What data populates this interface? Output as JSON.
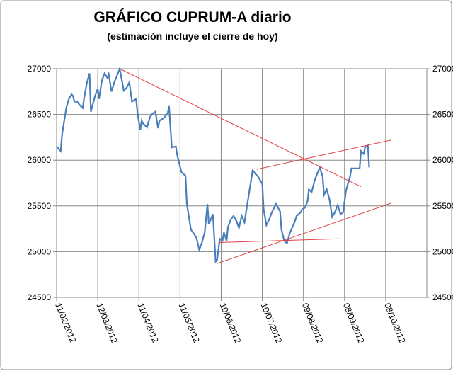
{
  "chart_data": {
    "type": "line",
    "title": "GRÁFICO CUPRUM-A diario",
    "subtitle": "(estimación incluye el cierre de hoy)",
    "xlim": [
      "2012-02-11",
      "2012-11-07"
    ],
    "xticks": [
      {
        "value": "2012-02-11",
        "label": "11/02/2012"
      },
      {
        "value": "2012-03-12",
        "label": "12/03/2012"
      },
      {
        "value": "2012-04-11",
        "label": "11/04/2012"
      },
      {
        "value": "2012-05-11",
        "label": "11/05/2012"
      },
      {
        "value": "2012-06-10",
        "label": "10/06/2012"
      },
      {
        "value": "2012-07-10",
        "label": "10/07/2012"
      },
      {
        "value": "2012-08-09",
        "label": "09/08/2012"
      },
      {
        "value": "2012-09-08",
        "label": "08/09/2012"
      },
      {
        "value": "2012-10-08",
        "label": "08/10/2012"
      }
    ],
    "ylim": [
      24500,
      27000
    ],
    "yticks": [
      24500,
      25000,
      25500,
      26000,
      26500,
      27000
    ],
    "y2lim": [
      24500,
      27000
    ],
    "y2ticks": [
      24500,
      25000,
      25500,
      26000,
      26500,
      27000
    ],
    "grid": true,
    "series": [
      {
        "color": "#4a7ebb",
        "x": [
          "2012-02-11",
          "2012-02-14",
          "2012-02-15",
          "2012-02-18",
          "2012-02-20",
          "2012-02-22",
          "2012-02-23",
          "2012-02-24",
          "2012-02-26",
          "2012-02-28",
          "2012-03-01",
          "2012-03-02",
          "2012-03-04",
          "2012-03-06",
          "2012-03-07",
          "2012-03-10",
          "2012-03-12",
          "2012-03-13",
          "2012-03-15",
          "2012-03-17",
          "2012-03-19",
          "2012-03-20",
          "2012-03-22",
          "2012-03-24",
          "2012-03-26",
          "2012-03-28",
          "2012-03-31",
          "2012-04-02",
          "2012-04-04",
          "2012-04-06",
          "2012-04-09",
          "2012-04-10",
          "2012-04-12",
          "2012-04-13",
          "2012-04-14",
          "2012-04-17",
          "2012-04-19",
          "2012-04-21",
          "2012-04-23",
          "2012-04-25",
          "2012-04-26",
          "2012-04-29",
          "2012-05-02",
          "2012-05-03",
          "2012-05-05",
          "2012-05-08",
          "2012-05-09",
          "2012-05-12",
          "2012-05-15",
          "2012-05-16",
          "2012-05-19",
          "2012-05-21",
          "2012-05-23",
          "2012-05-25",
          "2012-05-27",
          "2012-05-29",
          "2012-05-31",
          "2012-06-01",
          "2012-06-04",
          "2012-06-06",
          "2012-06-07",
          "2012-06-09",
          "2012-06-11",
          "2012-06-12",
          "2012-06-14",
          "2012-06-15",
          "2012-06-17",
          "2012-06-19",
          "2012-06-21",
          "2012-06-23",
          "2012-06-25",
          "2012-06-27",
          "2012-06-29",
          "2012-07-01",
          "2012-07-03",
          "2012-07-05",
          "2012-07-07",
          "2012-07-10",
          "2012-07-11",
          "2012-07-13",
          "2012-07-15",
          "2012-07-17",
          "2012-07-20",
          "2012-07-23",
          "2012-07-24",
          "2012-07-26",
          "2012-07-28",
          "2012-07-30",
          "2012-08-01",
          "2012-08-03",
          "2012-08-04",
          "2012-08-07",
          "2012-08-08",
          "2012-08-10",
          "2012-08-12",
          "2012-08-13",
          "2012-08-15",
          "2012-08-17",
          "2012-08-19",
          "2012-08-21",
          "2012-08-23",
          "2012-08-24",
          "2012-08-26",
          "2012-08-28",
          "2012-08-30",
          "2012-09-01",
          "2012-09-03",
          "2012-09-05",
          "2012-09-07",
          "2012-09-09",
          "2012-09-10",
          "2012-09-12",
          "2012-09-13",
          "2012-09-15",
          "2012-09-17",
          "2012-09-19",
          "2012-09-20",
          "2012-09-22",
          "2012-09-23",
          "2012-09-25",
          "2012-09-26"
        ],
        "values": [
          26150,
          26100,
          26280,
          26570,
          26670,
          26720,
          26700,
          26640,
          26640,
          26600,
          26570,
          26670,
          26840,
          26950,
          26530,
          26700,
          26780,
          26670,
          26870,
          26950,
          26900,
          26940,
          26750,
          26850,
          26920,
          27000,
          26760,
          26790,
          26850,
          26640,
          26670,
          26510,
          26330,
          26430,
          26400,
          26360,
          26470,
          26510,
          26530,
          26350,
          26430,
          26460,
          26510,
          26590,
          26140,
          26150,
          26050,
          25870,
          25830,
          25520,
          25240,
          25200,
          25150,
          25020,
          25100,
          25210,
          25520,
          25300,
          25410,
          24890,
          24900,
          25140,
          25120,
          25210,
          25120,
          25270,
          25350,
          25390,
          25340,
          25260,
          25390,
          25320,
          25510,
          25700,
          25890,
          25850,
          25820,
          25740,
          25460,
          25290,
          25350,
          25430,
          25520,
          25440,
          25240,
          25120,
          25090,
          25200,
          25270,
          25340,
          25390,
          25430,
          25460,
          25480,
          25550,
          25680,
          25650,
          25770,
          25850,
          25920,
          25820,
          25620,
          25680,
          25570,
          25380,
          25430,
          25510,
          25410,
          25430,
          25660,
          25720,
          25820,
          25910,
          25910,
          25910,
          25910,
          26100,
          26070,
          26140,
          26160,
          25920
        ]
      },
      {
        "color": "#e04040",
        "x": [
          "2012-03-28",
          "2012-09-20"
        ],
        "values": [
          27000,
          25710
        ]
      },
      {
        "color": "#e04040",
        "x": [
          "2012-07-06",
          "2012-10-12"
        ],
        "values": [
          25900,
          26220
        ]
      },
      {
        "color": "#e04040",
        "x": [
          "2012-06-07",
          "2012-10-12"
        ],
        "values": [
          24870,
          25530
        ]
      },
      {
        "color": "#e04040",
        "x": [
          "2012-06-08",
          "2012-09-04"
        ],
        "values": [
          25100,
          25140
        ]
      }
    ]
  }
}
